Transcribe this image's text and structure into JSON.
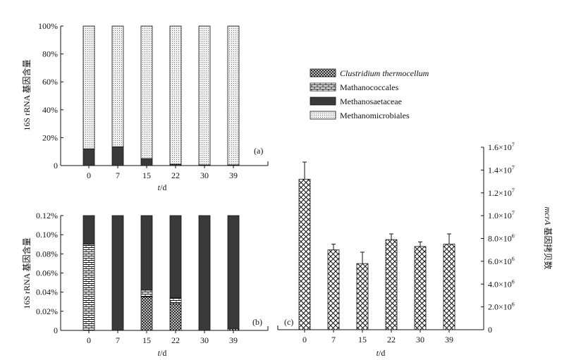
{
  "chart_data": [
    {
      "panel_label": "(a)",
      "type": "bar",
      "stacked": true,
      "categories": [
        "0",
        "7",
        "15",
        "22",
        "30",
        "39"
      ],
      "xlabel_var": "t",
      "xlabel_unit": "/d",
      "ylabel": "16S rRNA 基因含量",
      "ylim": [
        0,
        100
      ],
      "yticks": [
        "0",
        "20%",
        "40%",
        "60%",
        "80%",
        "100%"
      ],
      "series": [
        {
          "name": "Methanosaetaceae",
          "values": [
            12,
            13.5,
            5,
            1,
            0.5,
            0.5
          ]
        },
        {
          "name": "Methanomicrobiales",
          "values": [
            88,
            86.5,
            95,
            99,
            99.5,
            99.5
          ]
        }
      ]
    },
    {
      "panel_label": "(b)",
      "type": "bar",
      "stacked": true,
      "categories": [
        "0",
        "7",
        "15",
        "22",
        "30",
        "39"
      ],
      "xlabel_var": "t",
      "xlabel_unit": "/d",
      "ylabel": "16S rRNA 基因含量",
      "ylim": [
        0,
        0.12
      ],
      "yticks": [
        "0",
        "0.02%",
        "0.04%",
        "0.06%",
        "0.08%",
        "0.10%",
        "0.12%"
      ],
      "series": [
        {
          "name": "Clustridium thermocellum",
          "values": [
            0,
            0,
            0.035,
            0.028,
            0,
            0.002
          ]
        },
        {
          "name": "Mathanococcales",
          "values": [
            0.09,
            0,
            0.007,
            0.006,
            0,
            0
          ]
        },
        {
          "name": "Methanosaetaceae",
          "values": [
            0.03,
            0.12,
            0.078,
            0.086,
            0.12,
            0.118
          ]
        }
      ]
    },
    {
      "panel_label": "(c)",
      "type": "bar",
      "categories": [
        "0",
        "7",
        "15",
        "22",
        "30",
        "39"
      ],
      "xlabel_var": "t",
      "xlabel_unit": "/d",
      "ylabel_var": "mcrA",
      "ylabel_rest": " 基因拷贝数",
      "ylim": [
        0,
        16000000
      ],
      "yticks": [
        {
          "mant": "0",
          "exp": ""
        },
        {
          "mant": "2.0×10",
          "exp": "6"
        },
        {
          "mant": "4.0×10",
          "exp": "6"
        },
        {
          "mant": "6.0×10",
          "exp": "6"
        },
        {
          "mant": "8.0×10",
          "exp": "6"
        },
        {
          "mant": "1.0×10",
          "exp": "7"
        },
        {
          "mant": "1.2×10",
          "exp": "7"
        },
        {
          "mant": "1.4×10",
          "exp": "7"
        },
        {
          "mant": "1.6×10",
          "exp": "7"
        }
      ],
      "values": [
        13200000,
        7000000,
        5800000,
        7900000,
        7300000,
        7500000
      ],
      "errors": [
        1500000,
        500000,
        1000000,
        500000,
        400000,
        900000
      ]
    }
  ],
  "legend": {
    "entries": [
      {
        "name": "Clustridium thermocellum",
        "italic": true,
        "pattern": "crosshatch"
      },
      {
        "name": "Mathanococcales",
        "italic": false,
        "pattern": "brick"
      },
      {
        "name": "Methanosaetaceae",
        "italic": false,
        "pattern": "solid"
      },
      {
        "name": "Methanomicrobiales",
        "italic": false,
        "pattern": "dots"
      }
    ]
  },
  "colors": {
    "solid": "#3a3a3a",
    "ink": "#111111"
  }
}
